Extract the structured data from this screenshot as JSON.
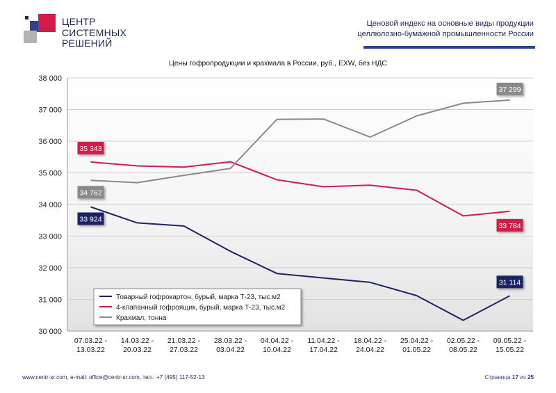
{
  "logo": {
    "line1": "ЦЕНТР",
    "line2": "СИСТЕМНЫХ",
    "line3": "РЕШЕНИЙ"
  },
  "header": {
    "title_line1": "Ценовой индекс на основные виды продукции",
    "title_line2": "целлюлозно-бумажной промышленности России"
  },
  "footer": {
    "contacts": "www.centr-sr.com, e-mail: office@centr-sr.com, тел.: +7 (495) 117-52-13",
    "page_word": "Страница",
    "page_current": "17",
    "page_of": "из",
    "page_total": "25"
  },
  "colors": {
    "navy": "#1f2266",
    "red": "#d41c4a",
    "gray": "#8a8a8a",
    "brand_blue": "#2e3f94"
  },
  "chart_data": {
    "type": "line",
    "title": "Цены гофропродукции и крахмала в России, руб., EXW, без НДС",
    "ylim": [
      30000,
      38000
    ],
    "yticks": [
      "30 000",
      "31 000",
      "32 000",
      "33 000",
      "34 000",
      "35 000",
      "36 000",
      "37 000",
      "38 000"
    ],
    "grid": true,
    "legend_position": "bottom-left",
    "categories": [
      [
        "07.03.22 -",
        "13.03.22"
      ],
      [
        "14.03.22 -",
        "20.03.22"
      ],
      [
        "21.03.22 -",
        "27.03.22"
      ],
      [
        "28.03.22 -",
        "03.04.22"
      ],
      [
        "04.04.22 -",
        "10.04.22"
      ],
      [
        "11.04.22 -",
        "17.04.22"
      ],
      [
        "18.04.22 -",
        "24.04.22"
      ],
      [
        "25.04.22 -",
        "01.05.22"
      ],
      [
        "02.05.22 -",
        "08.05.22"
      ],
      [
        "09.05.22 -",
        "15.05.22"
      ]
    ],
    "series": [
      {
        "name": "Товарный гофрокартон, бурый, марка Т-23, тыс.м2",
        "color": "#1f2266",
        "values": [
          33924,
          33420,
          33320,
          32520,
          31820,
          31680,
          31540,
          31120,
          30340,
          31114
        ],
        "first_label": "33 924",
        "last_label": "31 114"
      },
      {
        "name": "4-клапанный гофроящик, бурый, марка Т-23, тыс.м2",
        "color": "#d41c4a",
        "values": [
          35343,
          35220,
          35180,
          35350,
          34780,
          34560,
          34610,
          34450,
          33640,
          33784
        ],
        "first_label": "35 343",
        "last_label": "33 784"
      },
      {
        "name": "Крахмал, тонна",
        "color": "#8a8a8a",
        "values": [
          34762,
          34690,
          34920,
          35140,
          36690,
          36700,
          36130,
          36800,
          37200,
          37299
        ],
        "first_label": "34 762",
        "last_label": "37 299"
      }
    ]
  }
}
